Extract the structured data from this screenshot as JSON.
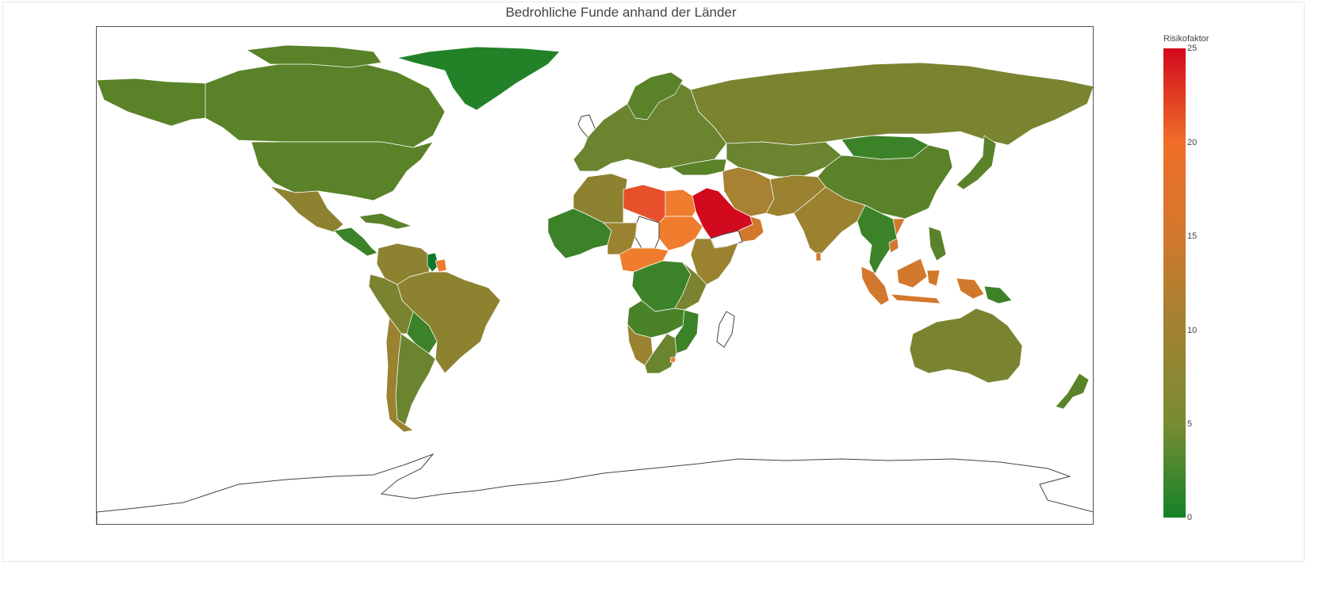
{
  "title": "Bedrohliche Funde anhand der Länder",
  "colorbar": {
    "title": "Risikofaktor",
    "ticks": [
      "25",
      "20",
      "15",
      "10",
      "5",
      "0"
    ],
    "range": [
      0,
      25
    ]
  },
  "colors": {
    "low": "#148228",
    "mid_low": "#5a8228",
    "mid": "#8c8230",
    "high": "#f07d2d",
    "very_high": "#e6502a",
    "max": "#d20a1e",
    "no_data": "#ffffff",
    "border": "#ffffff"
  },
  "chart_data": {
    "type": "choropleth",
    "title": "Bedrohliche Funde anhand der Länder",
    "colorbar_title": "Risikofaktor",
    "zmin": 0,
    "zmax": 25,
    "regions": [
      {
        "name": "Grönland",
        "value": 1
      },
      {
        "name": "Kanada",
        "value": 4
      },
      {
        "name": "Alaska",
        "value": 4
      },
      {
        "name": "USA",
        "value": 4
      },
      {
        "name": "Mexiko",
        "value": 7
      },
      {
        "name": "Mittelamerika",
        "value": 4
      },
      {
        "name": "Kuba/Karibik",
        "value": 4
      },
      {
        "name": "Venezuela/Kolumbien",
        "value": 6
      },
      {
        "name": "Guyana",
        "value": 1
      },
      {
        "name": "Suriname",
        "value": 14
      },
      {
        "name": "Brasilien",
        "value": 7
      },
      {
        "name": "Peru/Bolivien",
        "value": 5
      },
      {
        "name": "Paraguay",
        "value": 3
      },
      {
        "name": "Argentinien",
        "value": 5
      },
      {
        "name": "Chile",
        "value": 7
      },
      {
        "name": "Europa",
        "value": 4
      },
      {
        "name": "Russland",
        "value": 5
      },
      {
        "name": "Zentralasien",
        "value": 4
      },
      {
        "name": "Mongolei",
        "value": 3
      },
      {
        "name": "China",
        "value": 4
      },
      {
        "name": "Japan",
        "value": 4
      },
      {
        "name": "Iran",
        "value": 9
      },
      {
        "name": "Indien",
        "value": 7
      },
      {
        "name": "Saudi-Arabien",
        "value": 25
      },
      {
        "name": "Oman",
        "value": 10
      },
      {
        "name": "Libyen",
        "value": 18
      },
      {
        "name": "Ägypten",
        "value": 15
      },
      {
        "name": "Sudan",
        "value": 15
      },
      {
        "name": "Algerien",
        "value": 6
      },
      {
        "name": "Westafrika",
        "value": 3
      },
      {
        "name": "Nigeria/Niger",
        "value": 9
      },
      {
        "name": "Kamerun/ZAR",
        "value": 14
      },
      {
        "name": "Kongo",
        "value": 3
      },
      {
        "name": "Ostafrika",
        "value": 7
      },
      {
        "name": "Angola/Sambia",
        "value": 4
      },
      {
        "name": "Südliches Afrika",
        "value": 8
      },
      {
        "name": "Südafrika",
        "value": 5
      },
      {
        "name": "Südostasien",
        "value": 4
      },
      {
        "name": "Vietnam",
        "value": 12
      },
      {
        "name": "Indonesien",
        "value": 12
      },
      {
        "name": "Papua-Neuguinea",
        "value": 3
      },
      {
        "name": "Australien",
        "value": 5
      },
      {
        "name": "Neuseeland",
        "value": 4
      }
    ]
  }
}
